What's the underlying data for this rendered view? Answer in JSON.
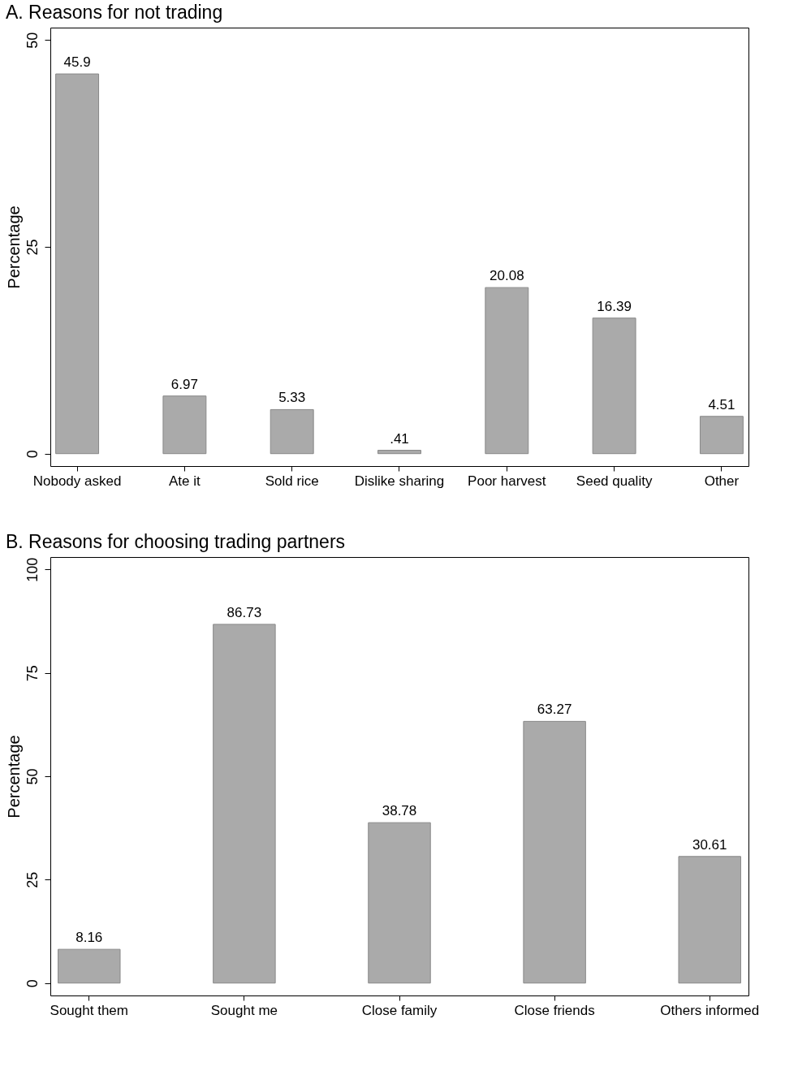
{
  "chart_data": [
    {
      "type": "bar",
      "title": "A. Reasons for not trading",
      "ylabel": "Percentage",
      "categories": [
        "Nobody asked",
        "Ate it",
        "Sold rice",
        "Dislike sharing",
        "Poor harvest",
        "Seed quality",
        "Other"
      ],
      "values": [
        45.9,
        6.97,
        5.33,
        0.41,
        20.08,
        16.39,
        4.51
      ],
      "value_labels": [
        "45.9",
        "6.97",
        "5.33",
        ".41",
        "20.08",
        "16.39",
        "4.51"
      ],
      "color": "#aaaaaa",
      "ylim": [
        -1.5,
        51.5
      ],
      "yticks": [
        0,
        25,
        50
      ],
      "grid": false
    },
    {
      "type": "bar",
      "title": "B. Reasons for choosing trading partners",
      "ylabel": "Percentage",
      "categories": [
        "Sought them",
        "Sought me",
        "Close family",
        "Close friends",
        "Others informed"
      ],
      "values": [
        8.16,
        86.73,
        38.78,
        63.27,
        30.61
      ],
      "value_labels": [
        "8.16",
        "86.73",
        "38.78",
        "63.27",
        "30.61"
      ],
      "color": "#aaaaaa",
      "ylim": [
        -3,
        103
      ],
      "yticks": [
        0,
        25,
        50,
        75,
        100
      ],
      "grid": false
    }
  ]
}
